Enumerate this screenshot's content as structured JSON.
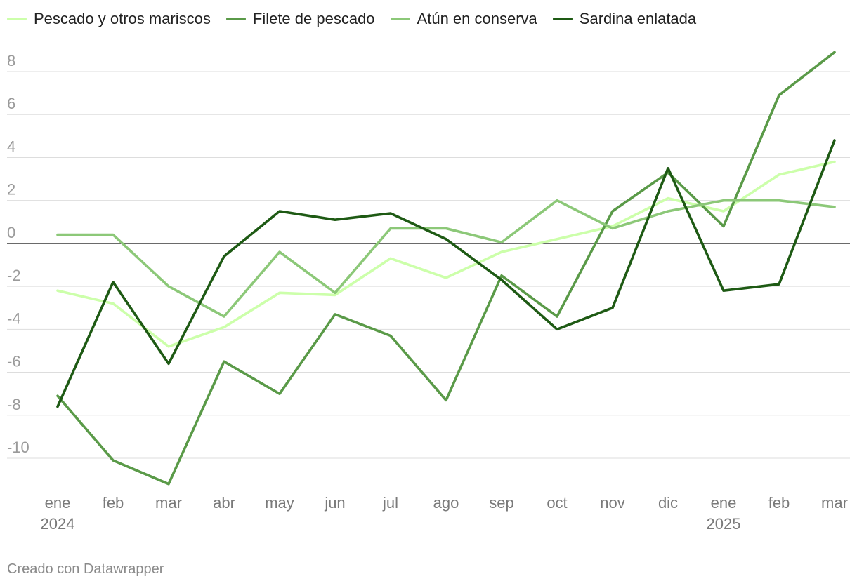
{
  "chart_data": {
    "type": "line",
    "x": [
      "ene",
      "feb",
      "mar",
      "abr",
      "may",
      "jun",
      "jul",
      "ago",
      "sep",
      "oct",
      "nov",
      "dic",
      "ene",
      "feb",
      "mar"
    ],
    "x_year_labels": [
      {
        "index": 0,
        "label": "2024"
      },
      {
        "index": 12,
        "label": "2025"
      }
    ],
    "yticks": [
      -10,
      -8,
      -6,
      -4,
      -2,
      0,
      2,
      4,
      6,
      8
    ],
    "ylim": [
      -11.6,
      9.0
    ],
    "grid": true,
    "legend": "top-left",
    "series": [
      {
        "name": "Pescado y otros mariscos",
        "color": "#ccffaa",
        "values": [
          -2.2,
          -2.8,
          -4.8,
          -3.9,
          -2.3,
          -2.4,
          -0.7,
          -1.6,
          -0.4,
          0.2,
          0.8,
          2.1,
          1.5,
          3.2,
          3.8
        ]
      },
      {
        "name": "Filete de pescado",
        "color": "#5a9a48",
        "values": [
          -7.1,
          -10.1,
          -11.2,
          -5.5,
          -7.0,
          -3.3,
          -4.3,
          -7.3,
          -1.5,
          -3.4,
          1.5,
          3.3,
          0.8,
          6.9,
          8.9
        ]
      },
      {
        "name": "Atún en conserva",
        "color": "#8cc878",
        "values": [
          0.4,
          0.4,
          -2.0,
          -3.4,
          -0.4,
          -2.3,
          0.7,
          0.7,
          0.05,
          2.0,
          0.7,
          1.5,
          2.0,
          2.0,
          1.7
        ]
      },
      {
        "name": "Sardina enlatada",
        "color": "#1e5a14",
        "values": [
          -7.6,
          -1.8,
          -5.6,
          -0.6,
          1.5,
          1.1,
          1.4,
          0.2,
          -1.7,
          -4.0,
          -3.0,
          3.5,
          -2.2,
          -1.9,
          4.8
        ]
      }
    ]
  },
  "footer": "Creado con Datawrapper"
}
